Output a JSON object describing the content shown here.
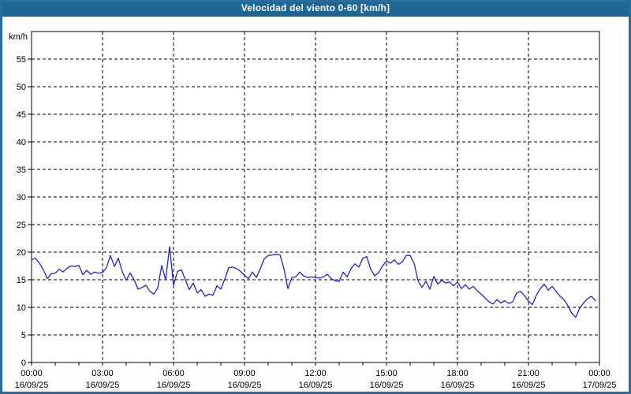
{
  "window": {
    "title": "Velocidad del viento 0-60 [km/h]"
  },
  "colors": {
    "titlebar_bg": "#1f6695",
    "frame_border": "#2a6c9c",
    "plot_background": "#ffffff",
    "grid_line": "#000000",
    "axis_line": "#000000",
    "series_line": "#2424bd",
    "title_text": "#ffffff",
    "label_text": "#000000"
  },
  "chart_data": {
    "type": "line",
    "title": "Velocidad del viento 0-60 [km/h]",
    "unit_label": "km/h",
    "ylim": [
      0,
      60
    ],
    "y_tick_step": 5,
    "y_tick_labels": [
      "0",
      "5",
      "10",
      "15",
      "20",
      "25",
      "30",
      "35",
      "40",
      "45",
      "50",
      "55"
    ],
    "grid": "dashed",
    "legend": "none",
    "x_span_hours": 24,
    "x_minor_tick_every_hours": 1,
    "x_major_tick_every_hours": 3,
    "x_ticks": [
      {
        "hour": 0,
        "time": "00:00",
        "date": "16/09/25"
      },
      {
        "hour": 3,
        "time": "03:00",
        "date": "16/09/25"
      },
      {
        "hour": 6,
        "time": "06:00",
        "date": "16/09/25"
      },
      {
        "hour": 9,
        "time": "09:00",
        "date": "16/09/25"
      },
      {
        "hour": 12,
        "time": "12:00",
        "date": "16/09/25"
      },
      {
        "hour": 15,
        "time": "15:00",
        "date": "16/09/25"
      },
      {
        "hour": 18,
        "time": "18:00",
        "date": "16/09/25"
      },
      {
        "hour": 21,
        "time": "21:00",
        "date": "16/09/25"
      },
      {
        "hour": 24,
        "time": "00:00",
        "date": "17/09/25"
      }
    ],
    "series": [
      {
        "name": "velocidad-del-viento",
        "color": "#2424bd",
        "start_time": "00:00",
        "interval_minutes": 10,
        "values": [
          18.6,
          18.9,
          18.0,
          16.8,
          15.2,
          16.1,
          16.2,
          16.9,
          16.4,
          17.1,
          17.5,
          17.4,
          17.6,
          15.9,
          16.7,
          16.0,
          16.4,
          16.2,
          16.3,
          17.2,
          19.4,
          17.4,
          18.9,
          16.5,
          14.9,
          16.2,
          15.0,
          13.3,
          13.6,
          14.0,
          12.9,
          12.4,
          13.5,
          17.6,
          15.0,
          21.0,
          14.0,
          16.5,
          16.8,
          15.0,
          13.2,
          14.4,
          12.6,
          13.2,
          12.0,
          12.4,
          12.2,
          13.9,
          13.3,
          15.1,
          17.2,
          17.3,
          17.0,
          16.5,
          15.8,
          15.2,
          16.4,
          15.4,
          17.0,
          18.8,
          19.4,
          19.5,
          19.6,
          19.5,
          17.0,
          13.4,
          15.4,
          15.5,
          16.4,
          15.7,
          15.4,
          15.5,
          15.4,
          15.3,
          15.5,
          16.0,
          15.2,
          14.8,
          14.7,
          16.4,
          15.5,
          17.0,
          17.9,
          17.3,
          18.9,
          19.2,
          16.9,
          15.7,
          16.3,
          17.5,
          18.4,
          18.0,
          18.6,
          17.8,
          18.2,
          19.4,
          19.4,
          18.0,
          14.8,
          13.6,
          14.7,
          13.3,
          15.6,
          14.2,
          14.9,
          14.4,
          14.6,
          13.9,
          14.6,
          13.4,
          14.1,
          13.3,
          13.8,
          13.0,
          12.4,
          11.7,
          11.0,
          10.6,
          11.4,
          10.8,
          11.2,
          10.7,
          11.0,
          12.6,
          12.9,
          12.1,
          11.1,
          10.5,
          12.2,
          13.4,
          14.2,
          13.1,
          13.8,
          12.9,
          12.0,
          11.4,
          10.3,
          8.9,
          8.2,
          9.9,
          10.8,
          11.6,
          12.0,
          11.2
        ]
      }
    ]
  }
}
